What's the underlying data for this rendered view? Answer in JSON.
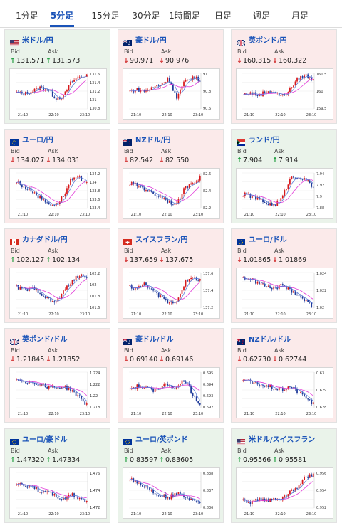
{
  "tabs": [
    "1分足",
    "5分足",
    "15分足",
    "30分足",
    "1時間足",
    "日足",
    "週足",
    "月足"
  ],
  "active_tab": "5分足",
  "labels": {
    "bid": "Bid",
    "ask": "Ask"
  },
  "x_ticks": [
    "21:10",
    "22:10",
    "23:10"
  ],
  "colors": {
    "up": "#1a9a3a",
    "down": "#d23030",
    "candle_up": "#d7191c",
    "candle_down": "#1f3b9a",
    "ma1": "#e23cd8",
    "ma2": "#5a7bd8",
    "link": "#1a53b8"
  },
  "cards": [
    {
      "pair": "米ドル/円",
      "flag": "us",
      "bg": "up",
      "bid": "131.571",
      "ask": "131.573",
      "dir": "up",
      "yticks": [
        "131.6",
        "131.4",
        "131.2",
        "131",
        "130.8"
      ],
      "trend": [
        0.45,
        0.42,
        0.5,
        0.6,
        0.55,
        0.3,
        0.35,
        0.75,
        0.9,
        0.95
      ]
    },
    {
      "pair": "豪ドル/円",
      "flag": "au",
      "bg": "down",
      "bid": "90.971",
      "ask": "90.976",
      "dir": "down",
      "yticks": [
        "91",
        "90.8",
        "90.6"
      ],
      "trend": [
        0.5,
        0.55,
        0.5,
        0.6,
        0.7,
        0.85,
        0.3,
        0.75,
        0.9,
        0.8
      ]
    },
    {
      "pair": "英ポンド/円",
      "flag": "gb",
      "bg": "down",
      "bid": "160.315",
      "ask": "160.322",
      "dir": "down",
      "yticks": [
        "160.5",
        "160",
        "159.5"
      ],
      "trend": [
        0.4,
        0.45,
        0.38,
        0.5,
        0.48,
        0.35,
        0.55,
        0.85,
        0.95,
        0.8
      ]
    },
    {
      "pair": "ユーロ/円",
      "flag": "eu",
      "bg": "down",
      "bid": "134.027",
      "ask": "134.031",
      "dir": "down",
      "yticks": [
        "134.2",
        "134",
        "133.8",
        "133.6",
        "133.4"
      ],
      "trend": [
        0.75,
        0.6,
        0.5,
        0.3,
        0.15,
        0.1,
        0.35,
        0.8,
        0.85,
        0.75
      ]
    },
    {
      "pair": "NZドル/円",
      "flag": "nz",
      "bg": "down",
      "bid": "82.542",
      "ask": "82.550",
      "dir": "down",
      "yticks": [
        "82.6",
        "82.4",
        "82.2"
      ],
      "trend": [
        0.7,
        0.65,
        0.55,
        0.4,
        0.35,
        0.2,
        0.1,
        0.55,
        0.75,
        0.85
      ]
    },
    {
      "pair": "ランド/円",
      "flag": "za",
      "bg": "up",
      "bid": "7.904",
      "ask": "7.914",
      "dir": "up",
      "yticks": [
        "7.94",
        "7.92",
        "7.9",
        "7.88"
      ],
      "trend": [
        0.4,
        0.35,
        0.25,
        0.15,
        0.1,
        0.3,
        0.85,
        0.9,
        0.8,
        0.6
      ]
    },
    {
      "pair": "カナダドル/円",
      "flag": "ca",
      "bg": "down",
      "bid": "102.127",
      "ask": "102.134",
      "dir": "up",
      "yticks": [
        "102.2",
        "102",
        "101.8",
        "101.6"
      ],
      "trend": [
        0.6,
        0.5,
        0.55,
        0.45,
        0.25,
        0.15,
        0.45,
        0.75,
        0.9,
        0.92
      ]
    },
    {
      "pair": "スイスフラン/円",
      "flag": "ch",
      "bg": "down",
      "bid": "137.659",
      "ask": "137.675",
      "dir": "down",
      "yticks": [
        "137.6",
        "137.4",
        "137.2"
      ],
      "trend": [
        0.6,
        0.55,
        0.7,
        0.45,
        0.3,
        0.15,
        0.2,
        0.7,
        0.85,
        0.8
      ]
    },
    {
      "pair": "ユーロ/ドル",
      "flag": "eu",
      "bg": "down",
      "bid": "1.01865",
      "ask": "1.01869",
      "dir": "down",
      "yticks": [
        "1.024",
        "1.022",
        "1.02"
      ],
      "trend": [
        0.85,
        0.8,
        0.7,
        0.6,
        0.55,
        0.65,
        0.5,
        0.4,
        0.2,
        0.05
      ]
    },
    {
      "pair": "英ポンド/ドル",
      "flag": "gb",
      "bg": "down",
      "bid": "1.21845",
      "ask": "1.21852",
      "dir": "down",
      "yticks": [
        "1.224",
        "1.222",
        "1.22",
        "1.218"
      ],
      "trend": [
        0.8,
        0.75,
        0.7,
        0.65,
        0.6,
        0.55,
        0.6,
        0.5,
        0.3,
        0.08
      ]
    },
    {
      "pair": "豪ドル/ドル",
      "flag": "au",
      "bg": "down",
      "bid": "0.69140",
      "ask": "0.69146",
      "dir": "down",
      "yticks": [
        "0.695",
        "0.694",
        "0.693",
        "0.692"
      ],
      "trend": [
        0.55,
        0.6,
        0.55,
        0.5,
        0.6,
        0.65,
        0.55,
        0.8,
        0.4,
        0.1
      ]
    },
    {
      "pair": "NZドル/ドル",
      "flag": "nz",
      "bg": "down",
      "bid": "0.62730",
      "ask": "0.62744",
      "dir": "down",
      "yticks": [
        "0.63",
        "0.629",
        "0.628"
      ],
      "trend": [
        0.8,
        0.7,
        0.65,
        0.6,
        0.55,
        0.5,
        0.6,
        0.45,
        0.3,
        0.1
      ]
    },
    {
      "pair": "ユーロ/豪ドル",
      "flag": "eu",
      "bg": "up",
      "bid": "1.47320",
      "ask": "1.47334",
      "dir": "up",
      "yticks": [
        "1.476",
        "1.474",
        "1.472"
      ],
      "trend": [
        0.7,
        0.6,
        0.65,
        0.45,
        0.5,
        0.35,
        0.25,
        0.4,
        0.3,
        0.2
      ]
    },
    {
      "pair": "ユーロ/英ポンド",
      "flag": "eu",
      "bg": "up",
      "bid": "0.83597",
      "ask": "0.83605",
      "dir": "up",
      "yticks": [
        "0.838",
        "0.837",
        "0.836"
      ],
      "trend": [
        0.85,
        0.7,
        0.6,
        0.45,
        0.35,
        0.3,
        0.4,
        0.35,
        0.25,
        0.2
      ]
    },
    {
      "pair": "米ドル/スイスフラン",
      "flag": "us",
      "bg": "up",
      "bid": "0.95566",
      "ask": "0.95581",
      "dir": "up",
      "yticks": [
        "0.956",
        "0.954",
        "0.952"
      ],
      "trend": [
        0.2,
        0.15,
        0.25,
        0.2,
        0.3,
        0.25,
        0.45,
        0.6,
        0.85,
        0.95
      ]
    }
  ]
}
